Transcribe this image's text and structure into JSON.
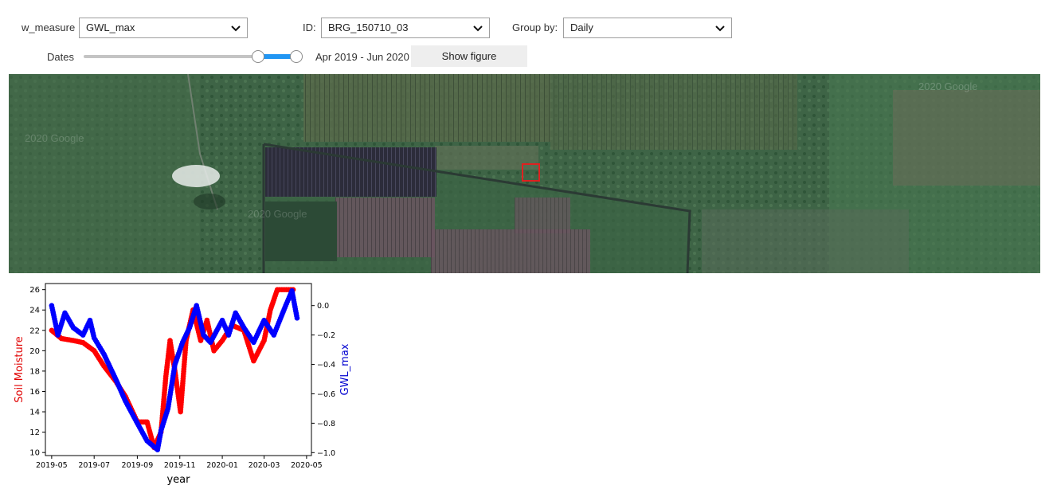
{
  "controls": {
    "w_measure": {
      "label": "w_measure",
      "value": "GWL_max"
    },
    "id": {
      "label": "ID:",
      "value": "BRG_150710_03"
    },
    "group_by": {
      "label": "Group by:",
      "value": "Daily"
    },
    "dates": {
      "label": "Dates",
      "range_text": "Apr 2019 - Jun 2020",
      "range_start_fraction": 0.85,
      "range_end_fraction": 1.0
    },
    "show_figure_label": "Show figure"
  },
  "map": {
    "watermarks": [
      "2020 Google",
      "2020 Google",
      "2020 Google"
    ],
    "marker_color": "#e02020"
  },
  "chart_data": {
    "type": "line",
    "x_ticks": [
      "2019-05",
      "2019-07",
      "2019-09",
      "2019-11",
      "2020-01",
      "2020-03",
      "2020-05"
    ],
    "xlabel": "year",
    "ylabel_left": "Soil Moisture",
    "ylabel_right": "GWL_max",
    "y_left_ticks": [
      10,
      12,
      14,
      16,
      18,
      20,
      22,
      24,
      26
    ],
    "y_right_ticks": [
      "0.0",
      "−0.2",
      "−0.4",
      "−0.6",
      "−0.8",
      "−1.0"
    ],
    "ylim_left": [
      9.7,
      26.6
    ],
    "ylim_right": [
      -1.02,
      0.15
    ],
    "series": [
      {
        "axis": "left",
        "color": "#ff0000",
        "points": [
          [
            "2019-05-01",
            22.0
          ],
          [
            "2019-05-15",
            21.2
          ],
          [
            "2019-06-01",
            21.0
          ],
          [
            "2019-06-15",
            20.8
          ],
          [
            "2019-07-01",
            20.0
          ],
          [
            "2019-07-15",
            18.5
          ],
          [
            "2019-08-01",
            17.0
          ],
          [
            "2019-08-15",
            15.5
          ],
          [
            "2019-09-01",
            13.0
          ],
          [
            "2019-09-15",
            13.0
          ],
          [
            "2019-09-25",
            10.5
          ],
          [
            "2019-10-05",
            12.0
          ],
          [
            "2019-10-12",
            17.5
          ],
          [
            "2019-10-18",
            21.0
          ],
          [
            "2019-10-25",
            18.0
          ],
          [
            "2019-11-02",
            14.0
          ],
          [
            "2019-11-10",
            21.0
          ],
          [
            "2019-11-20",
            24.0
          ],
          [
            "2019-12-01",
            21.0
          ],
          [
            "2019-12-10",
            23.0
          ],
          [
            "2019-12-20",
            20.0
          ],
          [
            "2020-01-01",
            21.0
          ],
          [
            "2020-01-15",
            22.5
          ],
          [
            "2020-02-01",
            22.0
          ],
          [
            "2020-02-15",
            19.0
          ],
          [
            "2020-03-01",
            21.0
          ],
          [
            "2020-03-10",
            24.0
          ],
          [
            "2020-03-20",
            26.0
          ],
          [
            "2020-04-15",
            26.0
          ]
        ]
      },
      {
        "axis": "right",
        "color": "#0000ff",
        "points": [
          [
            "2019-05-01",
            0.0
          ],
          [
            "2019-05-10",
            -0.2
          ],
          [
            "2019-05-20",
            -0.05
          ],
          [
            "2019-06-01",
            -0.15
          ],
          [
            "2019-06-15",
            -0.2
          ],
          [
            "2019-06-25",
            -0.1
          ],
          [
            "2019-07-01",
            -0.22
          ],
          [
            "2019-07-15",
            -0.33
          ],
          [
            "2019-08-01",
            -0.5
          ],
          [
            "2019-08-15",
            -0.65
          ],
          [
            "2019-09-01",
            -0.8
          ],
          [
            "2019-09-15",
            -0.92
          ],
          [
            "2019-09-30",
            -0.98
          ],
          [
            "2019-10-05",
            -0.85
          ],
          [
            "2019-10-15",
            -0.7
          ],
          [
            "2019-10-25",
            -0.4
          ],
          [
            "2019-11-05",
            -0.25
          ],
          [
            "2019-11-15",
            -0.15
          ],
          [
            "2019-11-25",
            0.0
          ],
          [
            "2019-12-05",
            -0.2
          ],
          [
            "2019-12-15",
            -0.25
          ],
          [
            "2020-01-01",
            -0.1
          ],
          [
            "2020-01-10",
            -0.2
          ],
          [
            "2020-01-20",
            -0.05
          ],
          [
            "2020-02-01",
            -0.15
          ],
          [
            "2020-02-15",
            -0.25
          ],
          [
            "2020-03-01",
            -0.1
          ],
          [
            "2020-03-15",
            -0.2
          ],
          [
            "2020-04-01",
            0.0
          ],
          [
            "2020-04-10",
            0.1
          ],
          [
            "2020-04-18",
            -0.1
          ]
        ]
      }
    ]
  }
}
